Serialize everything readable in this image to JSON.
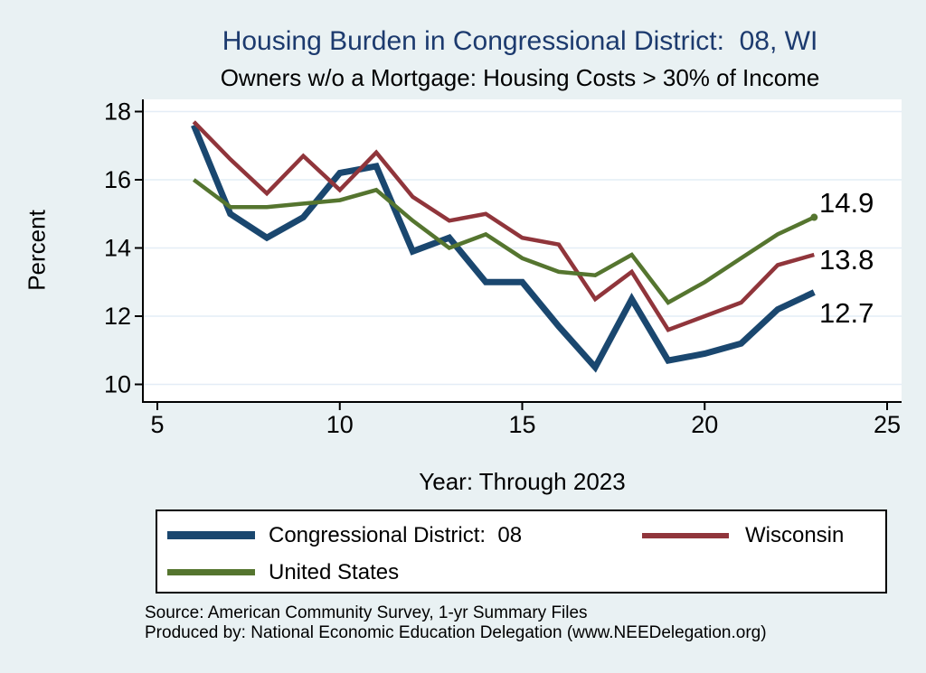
{
  "title": "Housing Burden in Congressional District:  08, WI",
  "subtitle": "Owners w/o a Mortgage: Housing Costs > 30% of Income",
  "source": {
    "line1": "Source: American Community Survey, 1-yr Summary Files",
    "line2": "Produced by: National Economic Education Delegation (www.NEEDelegation.org)"
  },
  "colors": {
    "background": "#e9f1f3",
    "plot_background": "#ffffff",
    "gridline": "#e4edf6",
    "axis": "#000000",
    "title_text": "#1c3a6e",
    "cd08_line": "#1a476f",
    "wisconsin_line": "#90353b",
    "united_states_line": "#55752f"
  },
  "chart_data": {
    "type": "line",
    "title": "Housing Burden in Congressional District:  08, WI",
    "subtitle": "Owners w/o a Mortgage: Housing Costs > 30% of Income",
    "xlabel": "Year: Through 2023",
    "ylabel": "Percent",
    "xticks": [
      5,
      10,
      15,
      20,
      25
    ],
    "yticks": [
      10,
      12,
      14,
      16,
      18
    ],
    "xlim": [
      4.6,
      25.4
    ],
    "ylim": [
      9.5,
      18.4
    ],
    "grid": "horizontal",
    "legend_position": "bottom box, two rows",
    "x": [
      6,
      7,
      8,
      9,
      10,
      11,
      12,
      13,
      14,
      15,
      16,
      17,
      18,
      19,
      20,
      21,
      22,
      23
    ],
    "series": [
      {
        "name": "Congressional District:  08",
        "color": "#1a476f",
        "line_width": 7,
        "end_label": "12.7",
        "end_marker": false,
        "values": [
          17.6,
          15.0,
          14.3,
          14.9,
          16.2,
          16.4,
          13.9,
          14.3,
          13.0,
          13.0,
          11.7,
          10.5,
          12.5,
          10.7,
          10.9,
          11.2,
          12.2,
          12.7
        ]
      },
      {
        "name": "Wisconsin",
        "color": "#90353b",
        "line_width": 4.5,
        "end_label": "13.8",
        "end_marker": false,
        "values": [
          17.7,
          16.6,
          15.6,
          16.7,
          15.7,
          16.8,
          15.5,
          14.8,
          15.0,
          14.3,
          14.1,
          12.5,
          13.3,
          11.6,
          12.0,
          12.4,
          13.5,
          13.8
        ]
      },
      {
        "name": "United States",
        "color": "#55752f",
        "line_width": 4.5,
        "end_label": "14.9",
        "end_marker": true,
        "values": [
          16.0,
          15.2,
          15.2,
          15.3,
          15.4,
          15.7,
          14.8,
          14.0,
          14.4,
          13.7,
          13.3,
          13.2,
          13.8,
          12.4,
          13.0,
          13.7,
          14.4,
          14.9
        ]
      }
    ]
  }
}
